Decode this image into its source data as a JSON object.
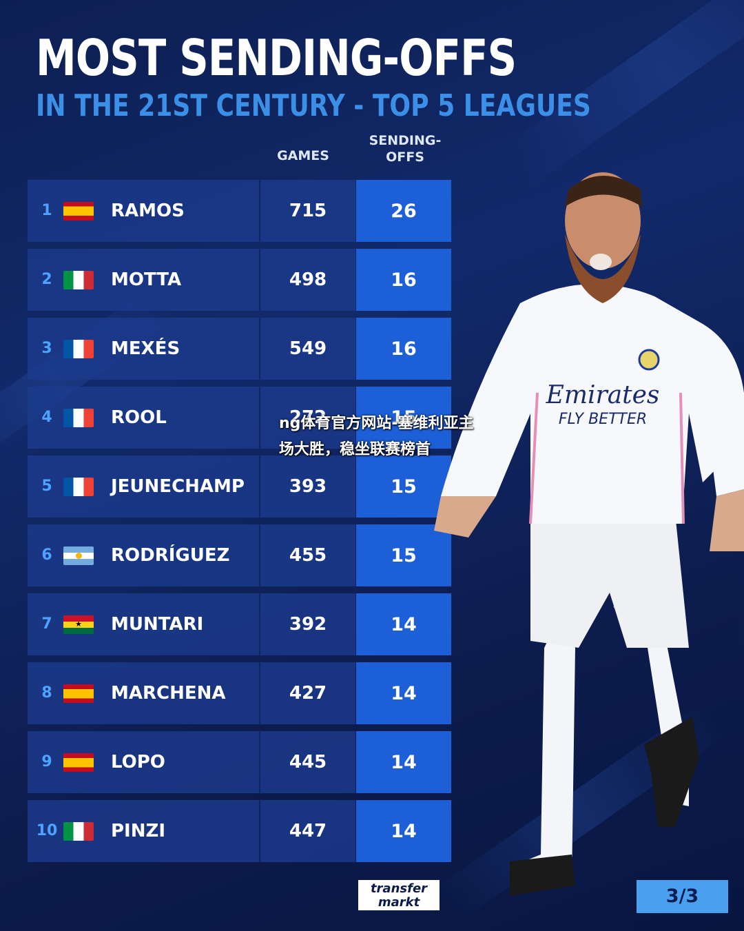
{
  "title": "MOST SENDING-OFFS",
  "subtitle": "IN THE 21ST CENTURY - TOP 5 LEAGUES",
  "columns": {
    "games": "GAMES",
    "sending_offs_line1": "SENDING-",
    "sending_offs_line2": "OFFS"
  },
  "rows": [
    {
      "rank": "1",
      "flag": "spain-flag-icon",
      "name": "RAMOS",
      "games": "715",
      "sending_offs": "26"
    },
    {
      "rank": "2",
      "flag": "italy-flag-icon",
      "name": "MOTTA",
      "games": "498",
      "sending_offs": "16"
    },
    {
      "rank": "3",
      "flag": "france-flag-icon",
      "name": "MEXÉS",
      "games": "549",
      "sending_offs": "16"
    },
    {
      "rank": "4",
      "flag": "france-flag-icon",
      "name": "ROOL",
      "games": "272",
      "sending_offs": "15"
    },
    {
      "rank": "5",
      "flag": "france-flag-icon",
      "name": "JEUNECHAMP",
      "games": "393",
      "sending_offs": "15"
    },
    {
      "rank": "6",
      "flag": "argentina-flag-icon",
      "name": "RODRÍGUEZ",
      "games": "455",
      "sending_offs": "15"
    },
    {
      "rank": "7",
      "flag": "ghana-flag-icon",
      "name": "MUNTARI",
      "games": "392",
      "sending_offs": "14"
    },
    {
      "rank": "8",
      "flag": "spain-flag-icon",
      "name": "MARCHENA",
      "games": "427",
      "sending_offs": "14"
    },
    {
      "rank": "9",
      "flag": "spain-flag-icon",
      "name": "LOPO",
      "games": "445",
      "sending_offs": "14"
    },
    {
      "rank": "10",
      "flag": "italy-flag-icon",
      "name": "PINZI",
      "games": "447",
      "sending_offs": "14"
    }
  ],
  "watermark": "ng体育官方网站-塞维利亚主场大胜，稳坐联赛榜首",
  "brand": {
    "line1": "transfer",
    "line2": "markt"
  },
  "jersey": {
    "sponsor": "Emirates",
    "tagline": "FLY BETTER"
  },
  "page_indicator": "3/3",
  "colors": {
    "background": "#0d1f52",
    "row": "#1c3a8c",
    "highlight": "#1d5fd6",
    "accent": "#3b8fe6",
    "page_badge": "#4aa0ee"
  }
}
